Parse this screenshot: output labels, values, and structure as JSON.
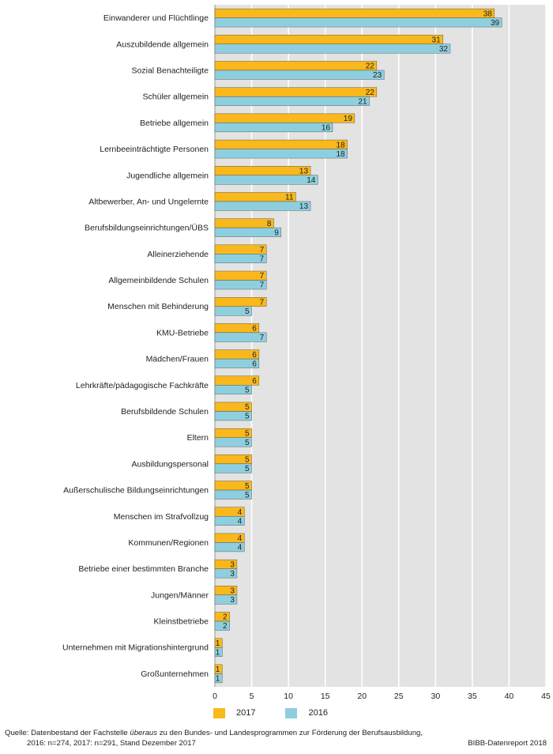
{
  "chart_data": {
    "type": "bar",
    "orientation": "horizontal",
    "categories": [
      "Einwanderer und Flüchtlinge",
      "Auszubildende allgemein",
      "Sozial Benachteiligte",
      "Schüler allgemein",
      "Betriebe allgemein",
      "Lernbeeinträchtigte Personen",
      "Jugendliche allgemein",
      "Altbewerber, An- und Ungelernte",
      "Berufsbildungseinrichtungen/ÜBS",
      "Alleinerziehende",
      "Allgemeinbildende Schulen",
      "Menschen mit Behinderung",
      "KMU-Betriebe",
      "Mädchen/Frauen",
      "Lehrkräfte/pädagogische Fachkräfte",
      "Berufsbildende Schulen",
      "Eltern",
      "Ausbildungspersonal",
      "Außerschulische Bildungseinrichtungen",
      "Menschen im Strafvollzug",
      "Kommunen/Regionen",
      "Betriebe einer bestimmten Branche",
      "Jungen/Männer",
      "Kleinstbetriebe",
      "Unternehmen mit Migrationshintergrund",
      "Großunternehmen"
    ],
    "series": [
      {
        "name": "2017",
        "color": "#f9b81b",
        "values": [
          38,
          31,
          22,
          22,
          19,
          18,
          13,
          11,
          8,
          7,
          7,
          7,
          6,
          6,
          6,
          5,
          5,
          5,
          5,
          4,
          4,
          3,
          3,
          2,
          1,
          1
        ]
      },
      {
        "name": "2016",
        "color": "#8ecfdf",
        "values": [
          39,
          32,
          23,
          21,
          16,
          18,
          14,
          13,
          9,
          7,
          7,
          5,
          7,
          6,
          5,
          5,
          5,
          5,
          5,
          4,
          4,
          3,
          3,
          2,
          1,
          1
        ]
      }
    ],
    "xlim": [
      0,
      45
    ],
    "xticks": [
      0,
      5,
      10,
      15,
      20,
      25,
      30,
      35,
      40,
      45
    ],
    "grid": true,
    "legend_position": "bottom"
  },
  "footer": {
    "source_prefix": "Quelle: Datenbestand der Fachstelle ",
    "source_emph": "überaus",
    "source_suffix": " zu den Bundes- und Landesprogrammen zur Förderung der Berufsausbildung,",
    "source_line2": "2016: n=274, 2017: n=291, Stand Dezember 2017",
    "credit": "BIBB-Datenreport 2018"
  }
}
